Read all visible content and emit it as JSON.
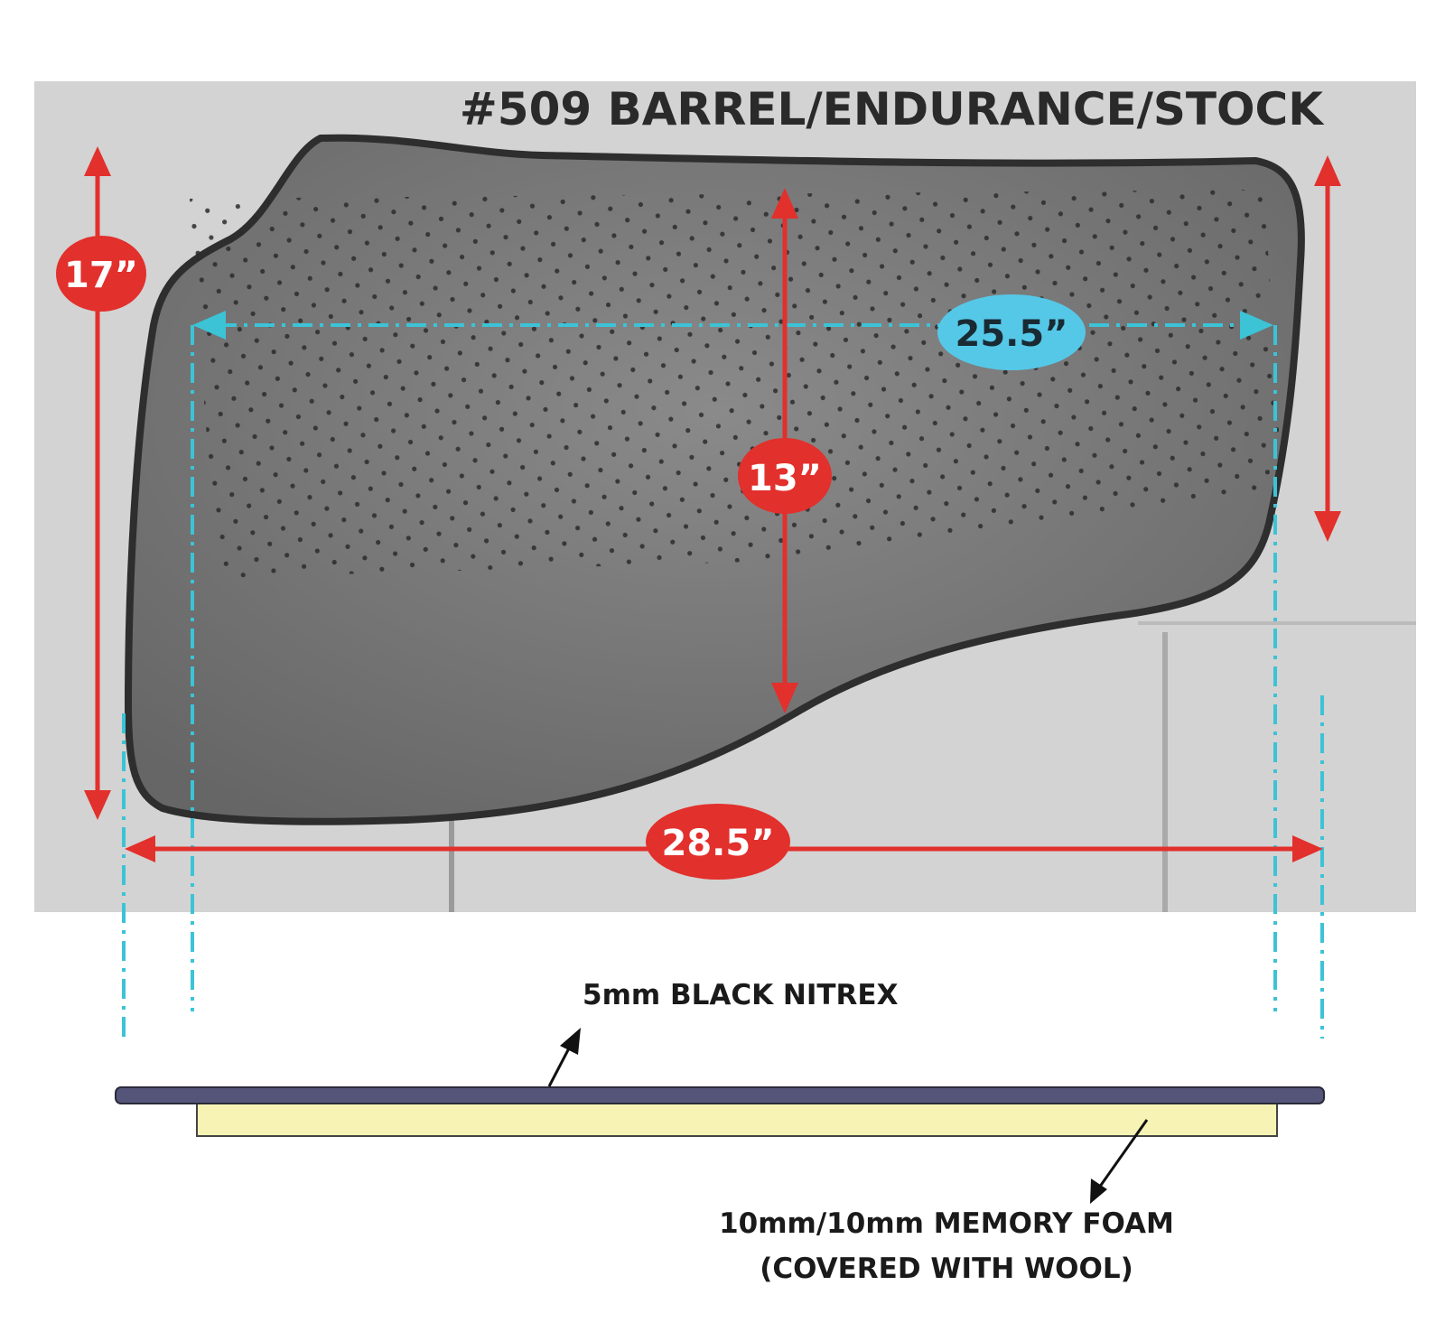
{
  "title": "#509  BARREL/ENDURANCE/STOCK",
  "dimensions": {
    "height_total": "17”",
    "height_center": "13”",
    "width_inner": "25.5”",
    "width_total": "28.5”"
  },
  "layers": {
    "top_label": "5mm BLACK NITREX",
    "bottom_label_line1": "10mm/10mm MEMORY FOAM",
    "bottom_label_line2": "(COVERED WITH WOOL)"
  },
  "colors": {
    "arrow_red": "#e2302c",
    "guide_cyan": "#3cc3d6",
    "label_blue": "#55c8e8",
    "nitrex_layer": "#55557a",
    "foam_layer": "#f6f3b4",
    "pad": "#6e6e6e"
  }
}
